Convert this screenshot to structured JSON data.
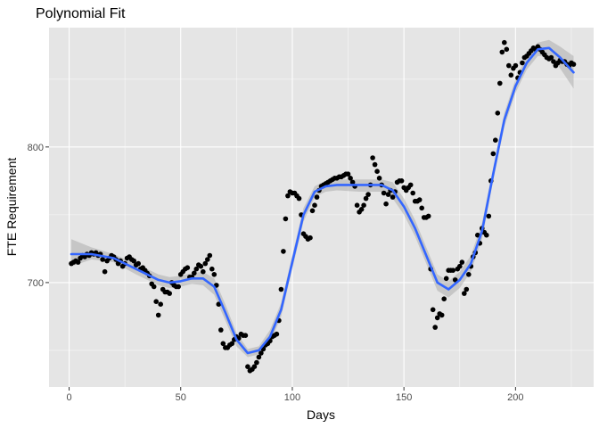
{
  "chart_data": {
    "type": "scatter",
    "title": "Polynomial Fit",
    "xlabel": "Days",
    "ylabel": "FTE Requirement",
    "xlim": [
      -9,
      235
    ],
    "ylim": [
      623,
      888
    ],
    "x_ticks": [
      0,
      50,
      100,
      150,
      200
    ],
    "y_ticks": [
      700,
      800
    ],
    "grid": true,
    "legend": "none",
    "colors": {
      "panel": "#e5e5e5",
      "grid_major": "#ffffff",
      "points": "#000000",
      "fit_line": "#3366ff",
      "ribbon": "#999999"
    },
    "points": [
      [
        1,
        714
      ],
      [
        2,
        715
      ],
      [
        3,
        716
      ],
      [
        4,
        715
      ],
      [
        5,
        718
      ],
      [
        6,
        720
      ],
      [
        7,
        719
      ],
      [
        8,
        721
      ],
      [
        9,
        720
      ],
      [
        10,
        722
      ],
      [
        11,
        721
      ],
      [
        12,
        722
      ],
      [
        13,
        720
      ],
      [
        14,
        721
      ],
      [
        15,
        717
      ],
      [
        16,
        708
      ],
      [
        17,
        716
      ],
      [
        18,
        718
      ],
      [
        19,
        720
      ],
      [
        20,
        719
      ],
      [
        21,
        717
      ],
      [
        22,
        714
      ],
      [
        23,
        716
      ],
      [
        24,
        712
      ],
      [
        25,
        714
      ],
      [
        26,
        718
      ],
      [
        27,
        719
      ],
      [
        28,
        717
      ],
      [
        29,
        716
      ],
      [
        30,
        713
      ],
      [
        31,
        714
      ],
      [
        32,
        710
      ],
      [
        33,
        711
      ],
      [
        34,
        709
      ],
      [
        35,
        707
      ],
      [
        36,
        705
      ],
      [
        37,
        699
      ],
      [
        38,
        697
      ],
      [
        39,
        686
      ],
      [
        40,
        676
      ],
      [
        41,
        684
      ],
      [
        42,
        695
      ],
      [
        43,
        693
      ],
      [
        44,
        693
      ],
      [
        45,
        692
      ],
      [
        46,
        700
      ],
      [
        47,
        698
      ],
      [
        48,
        697
      ],
      [
        49,
        697
      ],
      [
        50,
        706
      ],
      [
        51,
        708
      ],
      [
        52,
        710
      ],
      [
        53,
        711
      ],
      [
        54,
        704
      ],
      [
        55,
        704
      ],
      [
        56,
        707
      ],
      [
        57,
        710
      ],
      [
        58,
        713
      ],
      [
        59,
        712
      ],
      [
        60,
        708
      ],
      [
        61,
        714
      ],
      [
        62,
        717
      ],
      [
        63,
        720
      ],
      [
        64,
        710
      ],
      [
        65,
        706
      ],
      [
        66,
        698
      ],
      [
        67,
        684
      ],
      [
        68,
        665
      ],
      [
        69,
        655
      ],
      [
        70,
        652
      ],
      [
        71,
        652
      ],
      [
        72,
        654
      ],
      [
        73,
        655
      ],
      [
        74,
        658
      ],
      [
        75,
        660
      ],
      [
        76,
        659
      ],
      [
        77,
        662
      ],
      [
        78,
        661
      ],
      [
        79,
        661
      ],
      [
        80,
        638
      ],
      [
        81,
        635
      ],
      [
        82,
        636
      ],
      [
        83,
        638
      ],
      [
        84,
        641
      ],
      [
        85,
        645
      ],
      [
        86,
        648
      ],
      [
        87,
        651
      ],
      [
        88,
        654
      ],
      [
        89,
        655
      ],
      [
        90,
        657
      ],
      [
        91,
        660
      ],
      [
        92,
        661
      ],
      [
        93,
        662
      ],
      [
        94,
        672
      ],
      [
        95,
        695
      ],
      [
        96,
        723
      ],
      [
        97,
        747
      ],
      [
        98,
        764
      ],
      [
        99,
        767
      ],
      [
        100,
        766
      ],
      [
        101,
        766
      ],
      [
        102,
        764
      ],
      [
        103,
        762
      ],
      [
        104,
        750
      ],
      [
        105,
        736
      ],
      [
        106,
        734
      ],
      [
        107,
        732
      ],
      [
        108,
        733
      ],
      [
        109,
        753
      ],
      [
        110,
        757
      ],
      [
        111,
        763
      ],
      [
        112,
        768
      ],
      [
        113,
        771
      ],
      [
        114,
        772
      ],
      [
        115,
        773
      ],
      [
        116,
        774
      ],
      [
        117,
        775
      ],
      [
        118,
        776
      ],
      [
        119,
        777
      ],
      [
        120,
        777
      ],
      [
        121,
        778
      ],
      [
        122,
        778
      ],
      [
        123,
        779
      ],
      [
        124,
        780
      ],
      [
        125,
        780
      ],
      [
        126,
        777
      ],
      [
        127,
        774
      ],
      [
        128,
        771
      ],
      [
        129,
        757
      ],
      [
        130,
        752
      ],
      [
        131,
        754
      ],
      [
        132,
        757
      ],
      [
        133,
        762
      ],
      [
        134,
        765
      ],
      [
        135,
        772
      ],
      [
        136,
        792
      ],
      [
        137,
        787
      ],
      [
        138,
        782
      ],
      [
        139,
        777
      ],
      [
        140,
        772
      ],
      [
        141,
        766
      ],
      [
        142,
        758
      ],
      [
        143,
        765
      ],
      [
        144,
        768
      ],
      [
        145,
        763
      ],
      [
        146,
        767
      ],
      [
        147,
        774
      ],
      [
        148,
        775
      ],
      [
        149,
        775
      ],
      [
        150,
        770
      ],
      [
        151,
        768
      ],
      [
        152,
        770
      ],
      [
        153,
        772
      ],
      [
        154,
        766
      ],
      [
        155,
        760
      ],
      [
        156,
        760
      ],
      [
        157,
        761
      ],
      [
        158,
        755
      ],
      [
        159,
        748
      ],
      [
        160,
        748
      ],
      [
        161,
        749
      ],
      [
        162,
        710
      ],
      [
        163,
        680
      ],
      [
        164,
        667
      ],
      [
        165,
        674
      ],
      [
        166,
        677
      ],
      [
        167,
        676
      ],
      [
        168,
        688
      ],
      [
        169,
        703
      ],
      [
        170,
        709
      ],
      [
        171,
        709
      ],
      [
        172,
        709
      ],
      [
        173,
        702
      ],
      [
        174,
        710
      ],
      [
        175,
        712
      ],
      [
        176,
        715
      ],
      [
        177,
        692
      ],
      [
        178,
        695
      ],
      [
        179,
        706
      ],
      [
        180,
        712
      ],
      [
        181,
        719
      ],
      [
        182,
        722
      ],
      [
        183,
        735
      ],
      [
        184,
        729
      ],
      [
        185,
        740
      ],
      [
        186,
        737
      ],
      [
        187,
        735
      ],
      [
        188,
        749
      ],
      [
        189,
        775
      ],
      [
        190,
        795
      ],
      [
        191,
        805
      ],
      [
        192,
        825
      ],
      [
        193,
        847
      ],
      [
        194,
        870
      ],
      [
        195,
        877
      ],
      [
        196,
        872
      ],
      [
        197,
        860
      ],
      [
        198,
        853
      ],
      [
        199,
        858
      ],
      [
        200,
        860
      ],
      [
        201,
        851
      ],
      [
        202,
        855
      ],
      [
        203,
        862
      ],
      [
        204,
        866
      ],
      [
        205,
        867
      ],
      [
        206,
        869
      ],
      [
        207,
        871
      ],
      [
        208,
        873
      ],
      [
        209,
        872
      ],
      [
        210,
        874
      ],
      [
        211,
        872
      ],
      [
        212,
        870
      ],
      [
        213,
        868
      ],
      [
        214,
        866
      ],
      [
        215,
        865
      ],
      [
        216,
        866
      ],
      [
        217,
        863
      ],
      [
        218,
        860
      ],
      [
        219,
        862
      ],
      [
        220,
        864
      ],
      [
        221,
        863
      ],
      [
        222,
        863
      ],
      [
        223,
        861
      ],
      [
        224,
        860
      ],
      [
        225,
        862
      ],
      [
        226,
        861
      ]
    ],
    "fit": {
      "x": [
        1,
        10,
        20,
        30,
        40,
        45,
        50,
        55,
        60,
        65,
        70,
        75,
        80,
        85,
        90,
        95,
        100,
        105,
        110,
        115,
        120,
        130,
        140,
        145,
        150,
        155,
        160,
        165,
        170,
        175,
        180,
        185,
        190,
        195,
        200,
        205,
        210,
        215,
        220,
        226
      ],
      "y": [
        721,
        721,
        718,
        710,
        702,
        700,
        701,
        703,
        703,
        697,
        678,
        658,
        648,
        650,
        660,
        680,
        715,
        750,
        767,
        771,
        772,
        772,
        772,
        768,
        756,
        740,
        720,
        700,
        695,
        702,
        714,
        738,
        780,
        820,
        845,
        862,
        872,
        873,
        866,
        855
      ],
      "lower": [
        712,
        717,
        715,
        706,
        698,
        696,
        697,
        699,
        698,
        691,
        672,
        653,
        645,
        647,
        655,
        675,
        710,
        745,
        763,
        767,
        768,
        767,
        767,
        762,
        750,
        734,
        714,
        694,
        689,
        696,
        708,
        732,
        775,
        815,
        840,
        857,
        867,
        867,
        858,
        843
      ],
      "upper": [
        732,
        726,
        721,
        714,
        706,
        704,
        705,
        707,
        708,
        703,
        684,
        663,
        651,
        653,
        665,
        685,
        720,
        755,
        771,
        775,
        776,
        776,
        776,
        774,
        762,
        746,
        726,
        706,
        701,
        708,
        720,
        744,
        785,
        825,
        850,
        867,
        877,
        879,
        874,
        867
      ]
    }
  }
}
